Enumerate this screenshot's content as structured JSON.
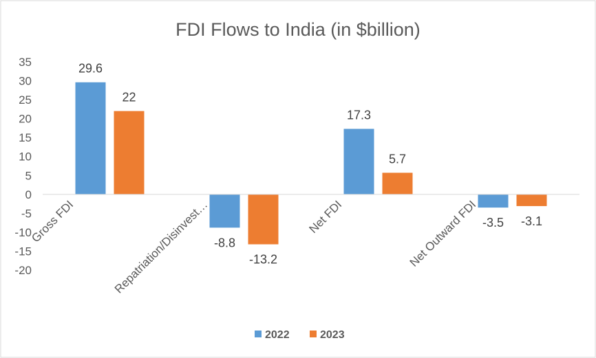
{
  "chart_data": {
    "type": "bar",
    "title": "FDI Flows to India (in $billion)",
    "categories": [
      "Gross FDI",
      "Repatriation/Disinvest…",
      "Net FDI",
      "Net Outward FDI"
    ],
    "series": [
      {
        "name": "2022",
        "values": [
          29.6,
          -8.8,
          17.3,
          -3.5
        ],
        "labels": [
          "29.6",
          "-8.8",
          "17.3",
          "-3.5"
        ],
        "color": "#5B9BD5"
      },
      {
        "name": "2023",
        "values": [
          22,
          -13.2,
          5.7,
          -3.1
        ],
        "labels": [
          "22",
          "-13.2",
          "5.7",
          "-3.1"
        ],
        "color": "#ED7D31"
      }
    ],
    "ylim": [
      -20,
      35
    ],
    "yticks": [
      "35",
      "30",
      "25",
      "20",
      "15",
      "10",
      "5",
      "0",
      "-5",
      "-10",
      "-15",
      "-20"
    ],
    "grid": false,
    "legend": "bottom"
  }
}
